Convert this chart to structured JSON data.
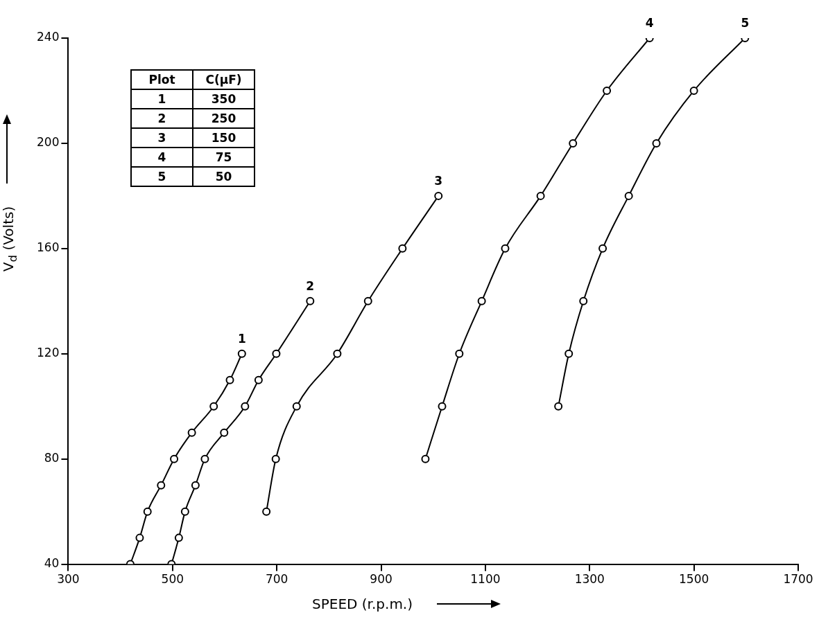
{
  "chart_data": {
    "type": "line",
    "xlabel": "SPEED (r.p.m.)",
    "ylabel": "V$_{d}$ (Volts)",
    "xlim": [
      300,
      1700
    ],
    "xticks": [
      300,
      500,
      700,
      900,
      1100,
      1300,
      1500,
      1700
    ],
    "ylim": [
      40,
      240
    ],
    "yticks": [
      40,
      80,
      120,
      160,
      200,
      240
    ],
    "grid": false,
    "marker": "circle",
    "line_style": "solid",
    "legend_title": "Plot",
    "annotations": [
      "C(μF)",
      "350",
      "250",
      "150",
      "75",
      "50"
    ],
    "series": [
      {
        "name": "1",
        "color": "#000000",
        "x": [
          419,
          437,
          452,
          478,
          503,
          537,
          579,
          610,
          633
        ],
        "values": [
          40,
          50,
          60,
          70,
          80,
          90,
          100,
          110,
          120
        ]
      },
      {
        "name": "2",
        "color": "#000000",
        "x": [
          498,
          512,
          524,
          544,
          562,
          599,
          639,
          665,
          699,
          764
        ],
        "values": [
          40,
          50,
          60,
          70,
          80,
          90,
          100,
          110,
          120,
          140
        ]
      },
      {
        "name": "3",
        "color": "#000000",
        "x": [
          680,
          698,
          738,
          816,
          875,
          941,
          1010
        ],
        "values": [
          60,
          80,
          100,
          120,
          140,
          160,
          180
        ]
      },
      {
        "name": "4",
        "color": "#000000",
        "x": [
          985,
          1017,
          1050,
          1093,
          1138,
          1206,
          1268,
          1333,
          1415
        ],
        "values": [
          80,
          100,
          120,
          140,
          160,
          180,
          200,
          220,
          240
        ]
      },
      {
        "name": "5",
        "color": "#000000",
        "x": [
          1240,
          1260,
          1288,
          1325,
          1375,
          1428,
          1500,
          1598
        ],
        "values": [
          100,
          120,
          140,
          160,
          180,
          200,
          220,
          240
        ]
      }
    ]
  }
}
